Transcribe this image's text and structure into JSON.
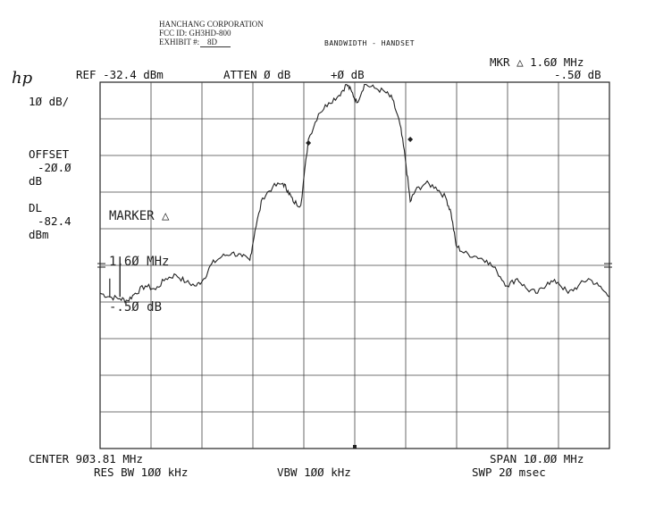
{
  "header": {
    "company": "HANCHANG CORPORATION",
    "fcc_id": "FCC ID: GH3HD-800",
    "exhibit_label": "EXHIBIT #:",
    "exhibit_number": "8D",
    "title": "BANDWIDTH - HANDSET"
  },
  "instrument": {
    "logo": "hp",
    "ref": "REF -32.4 dBm",
    "atten": "ATTEN Ø dB",
    "offset_top": "+Ø dB",
    "mkr_label": "MKR △ 1.6Ø MHz",
    "mkr_value": "-.5Ø dB",
    "scale": "1Ø dB/",
    "offset_label": "OFFSET",
    "offset_value": "-2Ø.Ø",
    "offset_unit": "dB",
    "dl_label": "DL",
    "dl_value": "-82.4",
    "dl_unit": "dBm",
    "marker_title": "MARKER △",
    "marker_freq": "1.6Ø MHz",
    "marker_delta": "-.5Ø dB",
    "center": "CENTER 9Ø3.81 MHz",
    "span": "SPAN 1Ø.ØØ MHz",
    "res_bw": "RES BW 1ØØ kHz",
    "vbw": "VBW 1ØØ kHz",
    "swp": "SWP 2Ø msec"
  },
  "chart_data": {
    "type": "line",
    "title": "BANDWIDTH - HANDSET",
    "xlabel": "",
    "ylabel": "",
    "center_mhz": 903.81,
    "span_mhz": 10.0,
    "ref_dbm": -32.4,
    "scale_db_per_div": 10,
    "display_line_dbm": -82.4,
    "xlim": [
      898.81,
      908.81
    ],
    "ylim": [
      -132.4,
      -32.4
    ],
    "grid": true,
    "series": [
      {
        "x": [
          898.81,
          899.0,
          899.2,
          899.35,
          899.5,
          899.7,
          899.9,
          900.1,
          900.3,
          900.5,
          900.7,
          900.85,
          901.0,
          901.2,
          901.4,
          901.6,
          901.75,
          901.85,
          902.0,
          902.2,
          902.4,
          902.5,
          902.6,
          902.75,
          902.9,
          903.1,
          903.3,
          903.5,
          903.65,
          903.75,
          903.85,
          904.0,
          904.2,
          904.4,
          904.55,
          904.7,
          904.8,
          904.9,
          905.0,
          905.2,
          905.4,
          905.6,
          905.7,
          905.8,
          905.95,
          906.2,
          906.4,
          906.6,
          906.8,
          907.0,
          907.2,
          907.4,
          907.6,
          907.8,
          908.0,
          908.2,
          908.4,
          908.6,
          908.81
        ],
        "y": [
          -90,
          -91,
          -91.5,
          -92,
          -90,
          -88,
          -89,
          -86,
          -85,
          -87,
          -88,
          -86,
          -82,
          -80,
          -79,
          -80,
          -81,
          -73,
          -64,
          -61,
          -60,
          -62,
          -65,
          -66,
          -48,
          -41,
          -38,
          -36,
          -33,
          -35,
          -38,
          -33,
          -34,
          -35,
          -37,
          -44,
          -53,
          -65,
          -62,
          -60,
          -61,
          -64,
          -68,
          -77,
          -79,
          -80,
          -81,
          -84,
          -88,
          -86,
          -89,
          -90,
          -87,
          -87,
          -90,
          -88,
          -86,
          -88,
          -91
        ]
      }
    ]
  }
}
